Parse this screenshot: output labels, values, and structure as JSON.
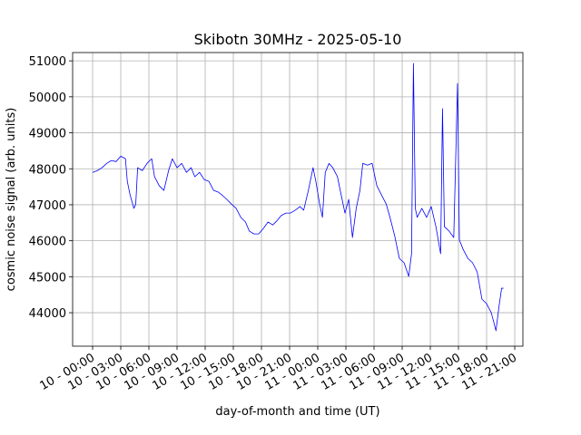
{
  "chart_data": {
    "type": "line",
    "title": "Skibotn 30MHz - 2025-05-10",
    "xlabel": "day-of-month and time (UT)",
    "ylabel": "cosmic noise signal (arb. units)",
    "color": "#0000ff",
    "grid": true,
    "x": [
      0,
      0.5,
      1,
      1.5,
      2,
      2.5,
      3,
      3.5,
      3.7,
      4,
      4.4,
      4.6,
      4.8,
      5.3,
      5.8,
      6.3,
      6.6,
      7.1,
      7.6,
      8.1,
      8.5,
      9,
      9.5,
      10,
      10.5,
      10.9,
      11.4,
      11.9,
      12.4,
      12.9,
      13.4,
      13.8,
      14.3,
      14.8,
      15.3,
      15.8,
      16.3,
      16.7,
      17.2,
      17.7,
      18.2,
      18.7,
      19.2,
      19.6,
      20.1,
      20.6,
      21.1,
      21.6,
      22.1,
      22.5,
      23,
      23.5,
      23.8,
      24.2,
      24.5,
      24.8,
      25.2,
      25.6,
      26.1,
      26.5,
      26.9,
      27.3,
      27.7,
      28.1,
      28.5,
      28.8,
      29.3,
      29.8,
      30.3,
      30.8,
      31.3,
      31.7,
      32.2,
      32.7,
      33.2,
      33.7,
      34,
      34.2,
      34.4,
      34.6,
      35.1,
      35.6,
      36.1,
      36.6,
      37.1,
      37.3,
      37.5,
      38,
      38.5,
      38.9,
      39.1,
      39.5,
      40,
      40.5,
      41,
      41.5,
      42,
      42.5,
      43,
      43.3,
      43.6,
      43.8
    ],
    "values": [
      47900,
      47950,
      48030,
      48150,
      48230,
      48200,
      48350,
      48280,
      47650,
      47270,
      46900,
      47020,
      48030,
      47950,
      48150,
      48280,
      47780,
      47530,
      47400,
      47950,
      48280,
      48030,
      48150,
      47900,
      48030,
      47780,
      47900,
      47700,
      47650,
      47400,
      47350,
      47270,
      47150,
      47020,
      46900,
      46650,
      46520,
      46270,
      46190,
      46190,
      46340,
      46520,
      46440,
      46540,
      46700,
      46770,
      46770,
      46850,
      46950,
      46850,
      47400,
      48030,
      47650,
      47020,
      46650,
      47900,
      48150,
      48030,
      47780,
      47270,
      46770,
      47150,
      46090,
      46900,
      47400,
      48150,
      48100,
      48150,
      47530,
      47270,
      47020,
      46650,
      46140,
      45510,
      45390,
      45010,
      45640,
      50930,
      46900,
      46650,
      46900,
      46650,
      46950,
      46390,
      45640,
      49670,
      46390,
      46270,
      46090,
      50370,
      46020,
      45760,
      45510,
      45390,
      45130,
      44380,
      44250,
      44000,
      43500,
      44130,
      44680,
      44680
    ],
    "xlim": [
      -2.13,
      45.87
    ],
    "ylim": [
      43070,
      51230
    ],
    "yticks": [
      44000,
      45000,
      46000,
      47000,
      48000,
      49000,
      50000,
      51000
    ],
    "xticks": [
      {
        "value": 0,
        "label": "10 - 00:00"
      },
      {
        "value": 3,
        "label": "10 - 03:00"
      },
      {
        "value": 6,
        "label": "10 - 06:00"
      },
      {
        "value": 9,
        "label": "10 - 09:00"
      },
      {
        "value": 12,
        "label": "10 - 12:00"
      },
      {
        "value": 15,
        "label": "10 - 15:00"
      },
      {
        "value": 18,
        "label": "10 - 18:00"
      },
      {
        "value": 21,
        "label": "10 - 21:00"
      },
      {
        "value": 24,
        "label": "11 - 00:00"
      },
      {
        "value": 27,
        "label": "11 - 03:00"
      },
      {
        "value": 30,
        "label": "11 - 06:00"
      },
      {
        "value": 33,
        "label": "11 - 09:00"
      },
      {
        "value": 36,
        "label": "11 - 12:00"
      },
      {
        "value": 39,
        "label": "11 - 15:00"
      },
      {
        "value": 42,
        "label": "11 - 18:00"
      },
      {
        "value": 45,
        "label": "11 - 21:00"
      }
    ]
  }
}
